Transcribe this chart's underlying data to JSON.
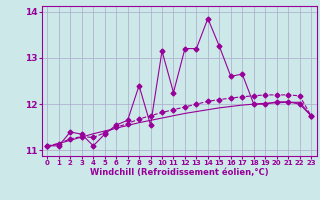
{
  "xlabel": "Windchill (Refroidissement éolien,°C)",
  "x_values": [
    0,
    1,
    2,
    3,
    4,
    5,
    6,
    7,
    8,
    9,
    10,
    11,
    12,
    13,
    14,
    15,
    16,
    17,
    18,
    19,
    20,
    21,
    22,
    23
  ],
  "y_main": [
    11.1,
    11.1,
    11.4,
    11.35,
    11.1,
    11.35,
    11.55,
    11.65,
    12.4,
    11.55,
    13.15,
    12.25,
    13.2,
    13.2,
    13.85,
    13.25,
    12.6,
    12.65,
    12.0,
    12.0,
    12.05,
    12.05,
    12.0,
    11.75
  ],
  "y_smooth": [
    11.1,
    11.15,
    11.25,
    11.3,
    11.28,
    11.38,
    11.5,
    11.58,
    11.68,
    11.75,
    11.82,
    11.88,
    11.94,
    12.0,
    12.06,
    12.1,
    12.13,
    12.16,
    12.18,
    12.2,
    12.2,
    12.2,
    12.18,
    11.75
  ],
  "y_linear": [
    11.08,
    11.15,
    11.22,
    11.29,
    11.36,
    11.42,
    11.48,
    11.54,
    11.6,
    11.65,
    11.7,
    11.75,
    11.8,
    11.84,
    11.88,
    11.92,
    11.95,
    11.98,
    12.0,
    12.02,
    12.03,
    12.04,
    12.04,
    11.75
  ],
  "ylim": [
    10.88,
    14.12
  ],
  "xlim": [
    -0.5,
    23.5
  ],
  "yticks": [
    11,
    12,
    13,
    14
  ],
  "xticks": [
    0,
    1,
    2,
    3,
    4,
    5,
    6,
    7,
    8,
    9,
    10,
    11,
    12,
    13,
    14,
    15,
    16,
    17,
    18,
    19,
    20,
    21,
    22,
    23
  ],
  "line_color": "#990099",
  "bg_color": "#cce8e8",
  "grid_color": "#aaaacc",
  "marker": "D",
  "marker_size": 2.5,
  "line_width": 0.8,
  "fig_width": 3.2,
  "fig_height": 2.0,
  "dpi": 100
}
